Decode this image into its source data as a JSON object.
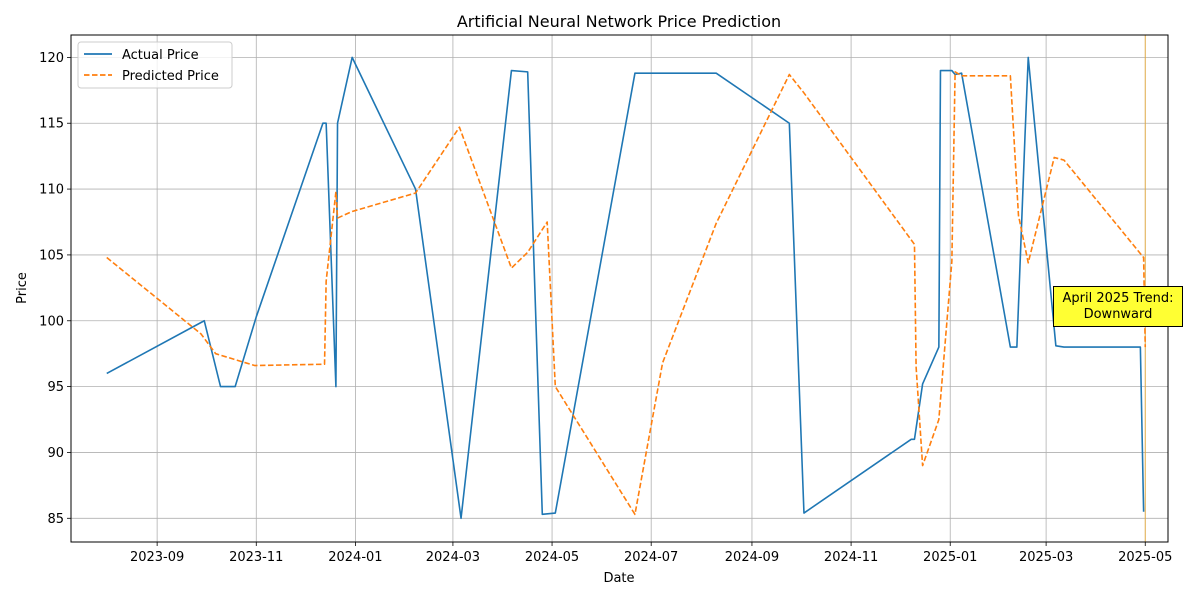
{
  "chart_data": {
    "type": "line",
    "title": "Artificial Neural Network Price Prediction",
    "xlabel": "Date",
    "ylabel": "Price",
    "xlim": [
      "2023-07-10",
      "2025-05-15"
    ],
    "ylim": [
      83.2,
      121.7
    ],
    "x_ticks": [
      "2023-09",
      "2023-11",
      "2024-01",
      "2024-03",
      "2024-05",
      "2024-07",
      "2024-09",
      "2024-11",
      "2025-01",
      "2025-03",
      "2025-05"
    ],
    "y_ticks": [
      85,
      90,
      95,
      100,
      105,
      110,
      115,
      120
    ],
    "grid": true,
    "legend_position": "upper-left",
    "series": [
      {
        "name": "Actual Price",
        "color": "#1f77b4",
        "style": "solid",
        "points": [
          [
            "2023-08-01",
            96.0
          ],
          [
            "2023-09-30",
            100.0
          ],
          [
            "2023-10-10",
            95.0
          ],
          [
            "2023-10-19",
            95.0
          ],
          [
            "2023-11-01",
            100.3
          ],
          [
            "2023-12-12",
            115.0
          ],
          [
            "2023-12-14",
            115.0
          ],
          [
            "2023-12-20",
            95.0
          ],
          [
            "2023-12-21",
            115.0
          ],
          [
            "2023-12-30",
            120.0
          ],
          [
            "2024-02-07",
            110.0
          ],
          [
            "2024-03-06",
            85.0
          ],
          [
            "2024-04-06",
            119.0
          ],
          [
            "2024-04-16",
            118.9
          ],
          [
            "2024-04-25",
            85.3
          ],
          [
            "2024-05-03",
            85.4
          ],
          [
            "2024-06-21",
            118.8
          ],
          [
            "2024-08-10",
            118.8
          ],
          [
            "2024-09-24",
            115.0
          ],
          [
            "2024-10-03",
            85.4
          ],
          [
            "2024-12-08",
            91.0
          ],
          [
            "2024-12-10",
            91.0
          ],
          [
            "2024-12-15",
            95.2
          ],
          [
            "2024-12-25",
            98.0
          ],
          [
            "2024-12-26",
            119.0
          ],
          [
            "2025-01-02",
            119.0
          ],
          [
            "2025-01-04",
            118.7
          ],
          [
            "2025-01-08",
            118.8
          ],
          [
            "2025-02-07",
            98.0
          ],
          [
            "2025-02-11",
            98.0
          ],
          [
            "2025-02-16",
            114.0
          ],
          [
            "2025-02-18",
            120.0
          ],
          [
            "2025-03-07",
            98.1
          ],
          [
            "2025-03-12",
            98.0
          ],
          [
            "2025-04-28",
            98.0
          ],
          [
            "2025-04-30",
            85.5
          ]
        ]
      },
      {
        "name": "Predicted Price",
        "color": "#ff7f0e",
        "style": "dashed",
        "points": [
          [
            "2023-08-01",
            104.8
          ],
          [
            "2023-09-28",
            99.0
          ],
          [
            "2023-10-07",
            97.5
          ],
          [
            "2023-10-31",
            96.6
          ],
          [
            "2023-12-13",
            96.7
          ],
          [
            "2023-12-14",
            103.0
          ],
          [
            "2023-12-20",
            109.8
          ],
          [
            "2023-12-21",
            107.8
          ],
          [
            "2023-12-30",
            108.3
          ],
          [
            "2024-02-07",
            109.7
          ],
          [
            "2024-03-05",
            114.7
          ],
          [
            "2024-04-06",
            104.0
          ],
          [
            "2024-04-16",
            105.2
          ],
          [
            "2024-04-28",
            107.5
          ],
          [
            "2024-05-03",
            95.0
          ],
          [
            "2024-06-21",
            85.3
          ],
          [
            "2024-07-08",
            96.8
          ],
          [
            "2024-08-10",
            107.4
          ],
          [
            "2024-09-24",
            118.7
          ],
          [
            "2024-10-03",
            117.3
          ],
          [
            "2024-12-10",
            105.8
          ],
          [
            "2024-12-11",
            96.5
          ],
          [
            "2024-12-15",
            89.0
          ],
          [
            "2024-12-25",
            92.5
          ],
          [
            "2025-01-02",
            104.5
          ],
          [
            "2025-01-04",
            118.9
          ],
          [
            "2025-01-08",
            118.6
          ],
          [
            "2025-02-07",
            118.6
          ],
          [
            "2025-02-12",
            108.0
          ],
          [
            "2025-02-18",
            104.4
          ],
          [
            "2025-03-06",
            112.4
          ],
          [
            "2025-03-12",
            112.2
          ],
          [
            "2025-04-30",
            104.8
          ],
          [
            "2025-05-01",
            98.0
          ]
        ]
      }
    ],
    "vline": {
      "date": "2025-05-01",
      "color": "#ffa500"
    },
    "annotation": {
      "line1": "April 2025 Trend:",
      "line2": "Downward",
      "background": "#ffff33"
    }
  }
}
